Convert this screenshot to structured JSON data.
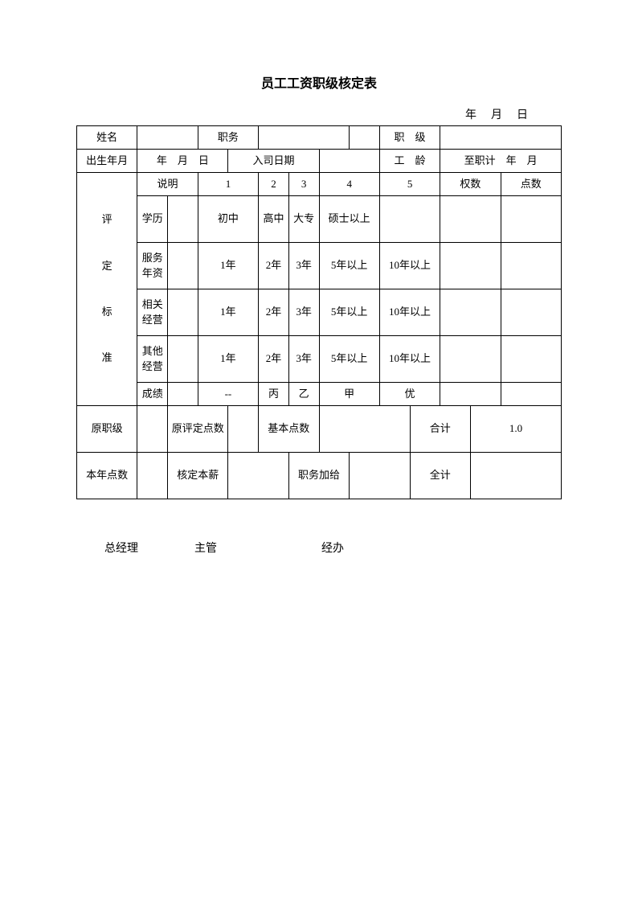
{
  "title": "员工工资职级核定表",
  "date_line": "年　月　日",
  "row1": {
    "name_label": "姓名",
    "name_value": "",
    "position_label": "职务",
    "position_value": "",
    "blank": "",
    "rank_label": "职　级",
    "rank_value": ""
  },
  "row2": {
    "birth_label": "出生年月",
    "birth_value": "年　月　日",
    "hiredate_label": "入司日期",
    "hiredate_value": "",
    "seniority_label": "工　龄",
    "seniority_value": "至职计　年　月"
  },
  "criteria": {
    "header_label": "评<br><br>定<br><br>标<br><br>准",
    "header_cols": [
      "说明",
      "1",
      "2",
      "3",
      "4",
      "5",
      "权数",
      "点数"
    ],
    "rows": [
      {
        "label": "学历",
        "cells": [
          "初中",
          "高中",
          "大专",
          "硕士以上",
          ""
        ]
      },
      {
        "label": "服务年资",
        "cells": [
          "1年",
          "2年",
          "3年",
          "5年以上",
          "10年以上"
        ]
      },
      {
        "label": "相关经营",
        "cells": [
          "1年",
          "2年",
          "3年",
          "5年以上",
          "10年以上"
        ]
      },
      {
        "label": "其他经营",
        "cells": [
          "1年",
          "2年",
          "3年",
          "5年以上",
          "10年以上"
        ]
      },
      {
        "label": "成绩",
        "cells": [
          "--",
          "丙",
          "乙",
          "甲",
          "优"
        ]
      }
    ]
  },
  "row_orig": {
    "orig_rank_label": "原职级",
    "orig_rank_value": "",
    "orig_points_label": "原评定点数",
    "orig_points_value": "",
    "base_points_label": "基本点数",
    "base_points_value": "",
    "total_label": "合计",
    "total_value": "1.0"
  },
  "row_this": {
    "year_points_label": "本年点数",
    "year_points_value": "",
    "assess_salary_label": "核定本薪",
    "assess_salary_value": "",
    "bonus_label": "职务加给",
    "bonus_value": "",
    "grand_label": "全计",
    "grand_value": ""
  },
  "signatures": {
    "gm": "总经理",
    "supervisor": "主管",
    "handler": "经办"
  }
}
